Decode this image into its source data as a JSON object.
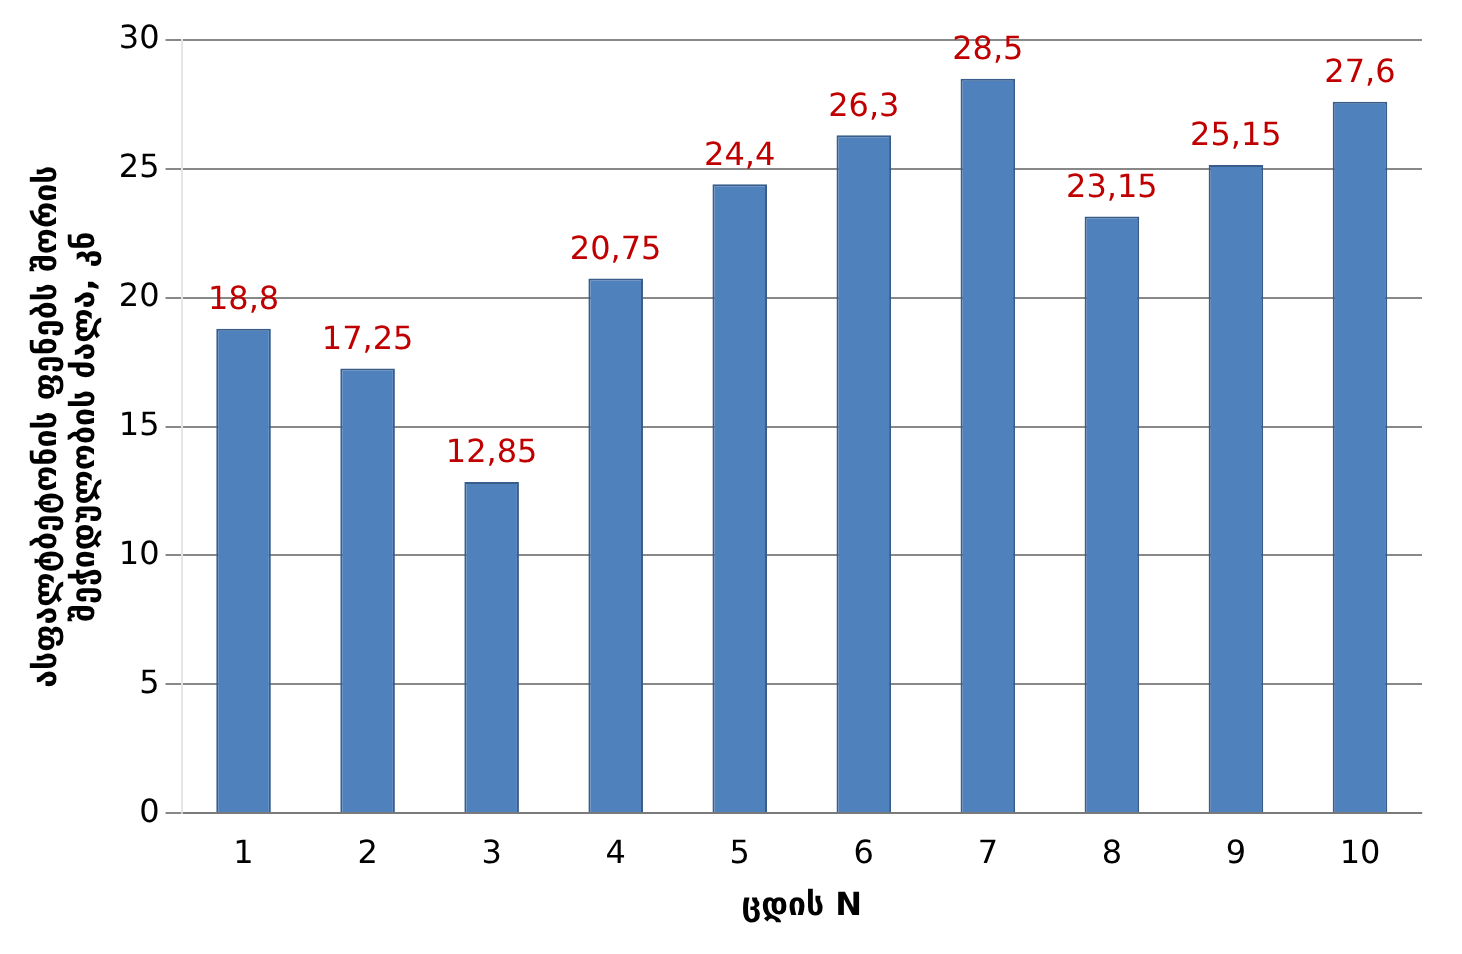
{
  "chart_data": {
    "type": "bar",
    "xlabel": "ცდის N",
    "ylabel": "ასფალტბეტონის ფენებს შორის\nშეჭიდულობის ძალა, კნ",
    "categories": [
      "1",
      "2",
      "3",
      "4",
      "5",
      "6",
      "7",
      "8",
      "9",
      "10"
    ],
    "values": [
      18.8,
      17.25,
      12.85,
      20.75,
      24.4,
      26.3,
      28.5,
      23.15,
      25.15,
      27.6
    ],
    "value_labels": [
      "18,8",
      "17,25",
      "12,85",
      "20,75",
      "24,4",
      "26,3",
      "28,5",
      "23,15",
      "25,15",
      "27,6"
    ],
    "color": "#4f81bd",
    "ylim": [
      0,
      30
    ],
    "yticks": [
      0,
      5,
      10,
      15,
      20,
      25,
      30
    ],
    "grid": "y",
    "legend": false
  }
}
